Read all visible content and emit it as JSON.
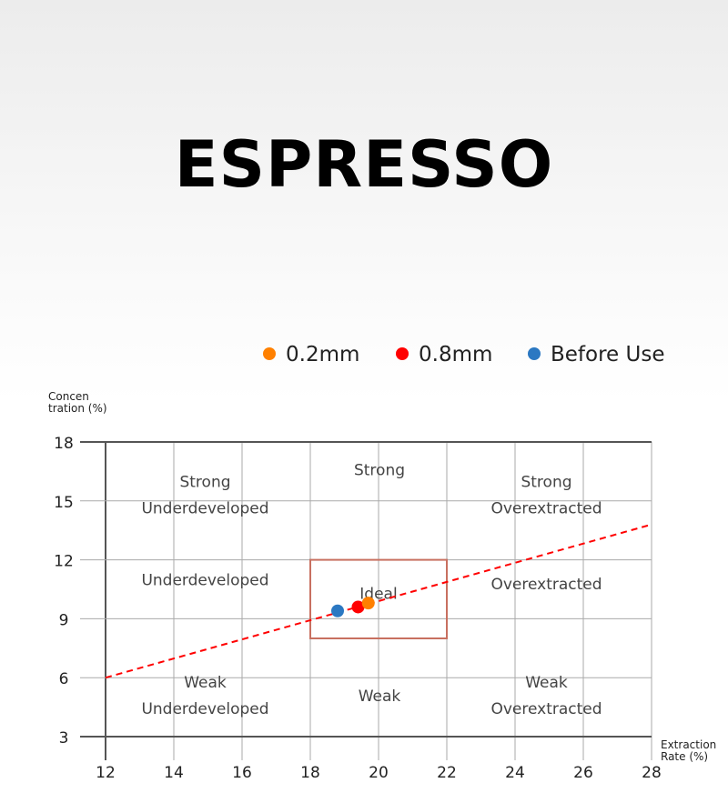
{
  "chart_data": {
    "type": "scatter",
    "title": "ESPRESSO",
    "xlabel": "Extraction Rate (%)",
    "xlabel_lines": [
      "Extraction",
      "Rate (%)"
    ],
    "ylabel": "Concentration (%)",
    "ylabel_lines": [
      "Concen",
      "tration (%)"
    ],
    "xlim": [
      12,
      28
    ],
    "ylim": [
      3,
      18
    ],
    "xticks": [
      12,
      14,
      16,
      18,
      20,
      22,
      24,
      26,
      28
    ],
    "yticks": [
      3,
      6,
      9,
      12,
      15,
      18
    ],
    "grid": true,
    "legend_position": "top-right",
    "series": [
      {
        "name": "0.2mm",
        "color": "#ff8000",
        "points": [
          [
            19.7,
            9.8
          ]
        ]
      },
      {
        "name": "0.8mm",
        "color": "#ff0000",
        "points": [
          [
            19.4,
            9.6
          ]
        ]
      },
      {
        "name": "Before Use",
        "color": "#2b78c2",
        "points": [
          [
            18.8,
            9.4
          ]
        ]
      }
    ],
    "trend_line": {
      "color": "#ff0000",
      "style": "dashed",
      "points": [
        [
          12,
          6
        ],
        [
          28,
          13.8
        ]
      ]
    },
    "ideal_box": {
      "color": "#c87060",
      "x": [
        18,
        22
      ],
      "y": [
        8,
        12
      ],
      "label": "Ideal"
    },
    "regions": [
      {
        "lines": [
          "Strong",
          "Underdeveloped"
        ],
        "x": 15,
        "y": 15.7
      },
      {
        "lines": [
          "Strong"
        ],
        "x": 20,
        "y": 16.3
      },
      {
        "lines": [
          "Strong",
          "Overextracted"
        ],
        "x": 25,
        "y": 15.7
      },
      {
        "lines": [
          "Underdeveloped"
        ],
        "x": 15,
        "y": 10.7
      },
      {
        "lines": [
          "Overextracted"
        ],
        "x": 25,
        "y": 10.5
      },
      {
        "lines": [
          "Weak",
          "Underdeveloped"
        ],
        "x": 15,
        "y": 5.5
      },
      {
        "lines": [
          "Weak"
        ],
        "x": 20,
        "y": 4.8
      },
      {
        "lines": [
          "Weak",
          "Overextracted"
        ],
        "x": 25,
        "y": 5.5
      }
    ]
  }
}
